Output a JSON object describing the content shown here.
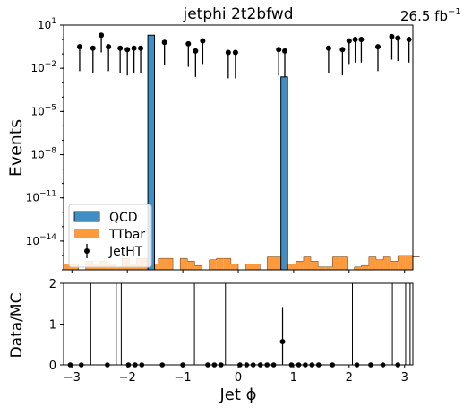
{
  "chart_data": [
    {
      "type": "bar",
      "title": "jetphi  2t2bfwd",
      "lumi_label": "26.5 fb",
      "lumi_exponent": "−1",
      "ylabel": "Events",
      "xlim": [
        -3.15,
        3.15
      ],
      "yscale": "log",
      "ylim_log10": [
        -16,
        1
      ],
      "yticks": [
        {
          "base": "10",
          "exp": "1",
          "log": 1
        },
        {
          "base": "10",
          "exp": "−2",
          "log": -2
        },
        {
          "base": "10",
          "exp": "−5",
          "log": -5
        },
        {
          "base": "10",
          "exp": "−8",
          "log": -8
        },
        {
          "base": "10",
          "exp": "−11",
          "log": -11
        },
        {
          "base": "10",
          "exp": "−14",
          "log": -14
        }
      ],
      "legend": {
        "placement": "lower-left",
        "entries": [
          {
            "label": "QCD",
            "color": "#3f8fc6",
            "kind": "bar"
          },
          {
            "label": "TTbar",
            "color": "#ff9a3c",
            "kind": "bar"
          },
          {
            "label": "JetHT",
            "color": "#000000",
            "kind": "errorbar"
          }
        ]
      },
      "series": [
        {
          "name": "QCD",
          "color": "#3f8fc6",
          "bins": [
            {
              "x0": -1.63,
              "x1": -1.51,
              "log10_value": 0.3
            },
            {
              "x0": 0.77,
              "x1": 0.89,
              "log10_value": -2.6
            }
          ]
        },
        {
          "name": "TTbar",
          "color": "#ff9a3c",
          "bin_width": 0.1309,
          "bin_x0": -3.1416,
          "log10_values": [
            -15.6,
            -15.6,
            -16.0,
            -15.4,
            -15.6,
            -15.4,
            -15.6,
            -15.8,
            -15.2,
            -15.6,
            -15.2,
            -15.2,
            -15.6,
            -15.2,
            -15.2,
            -16.0,
            -15.2,
            -15.4,
            -15.7,
            -16.0,
            -15.3,
            -15.2,
            -15.2,
            -15.6,
            -16.0,
            -15.6,
            -15.6,
            -16.0,
            -15.1,
            -15.1,
            -15.6,
            -15.6,
            -15.4,
            -15.1,
            -15.4,
            -15.8,
            -15.8,
            -15.1,
            -15.1,
            -16.0,
            -15.8,
            -15.7,
            -15.1,
            -15.3,
            -15.1,
            -15.4,
            -15.0,
            -15.0,
            -15.1,
            -15.1
          ]
        }
      ],
      "data_points": {
        "name": "JetHT",
        "points": [
          {
            "x": -2.86,
            "log10_y": -0.5,
            "log10_lo": -2.2
          },
          {
            "x": -2.62,
            "log10_y": -0.6,
            "log10_lo": -2.3
          },
          {
            "x": -2.47,
            "log10_y": 0.3,
            "log10_lo": -0.9
          },
          {
            "x": -2.34,
            "log10_y": -0.5,
            "log10_lo": -2.2
          },
          {
            "x": -2.13,
            "log10_y": -0.6,
            "log10_lo": -2.3
          },
          {
            "x": -2.0,
            "log10_y": -0.7,
            "log10_lo": -2.5
          },
          {
            "x": -1.88,
            "log10_y": -0.6,
            "log10_lo": -2.3
          },
          {
            "x": -1.76,
            "log10_y": -0.6,
            "log10_lo": -2.3
          },
          {
            "x": -1.33,
            "log10_y": -0.2,
            "log10_lo": -1.8
          },
          {
            "x": -0.9,
            "log10_y": -0.3,
            "log10_lo": -1.9
          },
          {
            "x": -0.77,
            "log10_y": -0.8,
            "log10_lo": -2.6
          },
          {
            "x": -0.64,
            "log10_y": -0.1,
            "log10_lo": -1.7
          },
          {
            "x": -0.18,
            "log10_y": -0.9,
            "log10_lo": -2.7
          },
          {
            "x": -0.05,
            "log10_y": -0.9,
            "log10_lo": -2.7
          },
          {
            "x": 0.73,
            "log10_y": -0.7,
            "log10_lo": -2.5
          },
          {
            "x": 0.84,
            "log10_y": -0.8,
            "log10_lo": -2.6
          },
          {
            "x": 1.63,
            "log10_y": -0.6,
            "log10_lo": -2.3
          },
          {
            "x": 1.88,
            "log10_y": -0.7,
            "log10_lo": -2.5
          },
          {
            "x": 2.0,
            "log10_y": -0.1,
            "log10_lo": -1.7
          },
          {
            "x": 2.11,
            "log10_y": 0.0,
            "log10_lo": -1.6
          },
          {
            "x": 2.22,
            "log10_y": 0.0,
            "log10_lo": -1.6
          },
          {
            "x": 2.52,
            "log10_y": -0.5,
            "log10_lo": -2.2
          },
          {
            "x": 2.77,
            "log10_y": 0.2,
            "log10_lo": -1.4
          },
          {
            "x": 2.88,
            "log10_y": 0.1,
            "log10_lo": -1.5
          },
          {
            "x": 3.08,
            "log10_y": 0.0,
            "log10_lo": -1.6
          }
        ]
      }
    },
    {
      "type": "scatter",
      "ylabel": "Data/MC",
      "xlabel": "Jet ϕ",
      "xlim": [
        -3.15,
        3.15
      ],
      "ylim": [
        0,
        2
      ],
      "yticks": [
        "0",
        "1",
        "2"
      ],
      "xticks": [
        "−3",
        "−2",
        "−1",
        "0",
        "1",
        "2",
        "3"
      ],
      "xtick_values": [
        -3,
        -2,
        -1,
        0,
        1,
        2,
        3
      ],
      "zero_points_x": [
        -3.03,
        -2.83,
        -2.36,
        -1.98,
        -1.86,
        -1.74,
        -1.37,
        -1.0,
        -0.55,
        -0.43,
        -0.31,
        0.03,
        0.15,
        0.27,
        0.4,
        0.52,
        0.64,
        0.96,
        1.09,
        1.21,
        1.33,
        1.45,
        1.7,
        2.14,
        2.39,
        2.61,
        2.88
      ],
      "vertical_lines_x": [
        -2.66,
        -2.2,
        -2.11,
        -0.79,
        -0.23,
        2.06,
        2.78,
        3.02,
        3.1
      ],
      "points": [
        {
          "x": 0.8,
          "y": 0.57,
          "yerr_hi": 0.85,
          "yerr_lo": 0.57
        }
      ]
    }
  ]
}
